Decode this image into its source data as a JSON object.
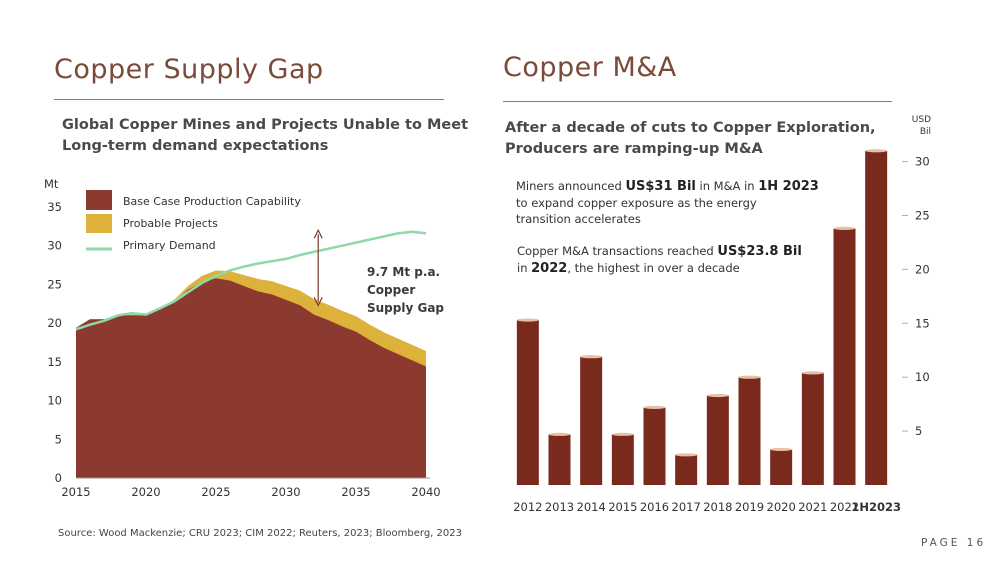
{
  "left": {
    "title": "Copper Supply Gap",
    "subtitle_line1": "Global Copper Mines and Projects Unable to Meet",
    "subtitle_line2": "Long-term demand expectations",
    "gap_label": [
      "9.7 Mt p.a.",
      "Copper",
      "Supply Gap"
    ],
    "source": "Source:  Wood Mackenzie; CRU 2023; CIM 2022; Reuters, 2023; Bloomberg, 2023"
  },
  "right": {
    "title": "Copper M&A",
    "subtitle_line1": "After a decade of cuts to Copper Exploration,",
    "subtitle_line2": "Producers are ramping-up M&A",
    "note1": {
      "pre": "Miners announced ",
      "b1": "US$31 Bil",
      "mid": " in M&A in ",
      "b2": "1H 2023",
      "line2": "to expand copper exposure as the energy",
      "line3": "transition accelerates"
    },
    "note2": {
      "pre": "Copper M&A transactions reached ",
      "b1": "US$23.8 Bil",
      "line2_pre": "in ",
      "b2": "2022",
      "line2_post": ", the highest in over a decade"
    }
  },
  "page_number": "PAGE 16",
  "colors": {
    "base": "#8c3a2f",
    "probable": "#dcb23a",
    "demand": "#8fd8a8",
    "bar": "#7a2a1c",
    "bar_top": "#e8c0a8",
    "title": "#7a4a3a"
  },
  "chart_data": [
    {
      "type": "area",
      "title": "",
      "ylabel": "Mt",
      "xlim": [
        2015,
        2040
      ],
      "ylim": [
        0,
        35
      ],
      "yticks": [
        0,
        5,
        10,
        15,
        20,
        25,
        30,
        35
      ],
      "xticks": [
        2015,
        2020,
        2025,
        2030,
        2035,
        2040
      ],
      "legend_placement": "top-left",
      "x": [
        2015,
        2016,
        2017,
        2018,
        2019,
        2020,
        2021,
        2022,
        2023,
        2024,
        2025,
        2026,
        2027,
        2028,
        2029,
        2030,
        2031,
        2032,
        2033,
        2034,
        2035,
        2036,
        2037,
        2038,
        2039,
        2040
      ],
      "series": [
        {
          "name": "Base Case Production Capability",
          "values": [
            19.4,
            20.5,
            20.5,
            21.0,
            21.0,
            21.0,
            21.8,
            22.8,
            24.3,
            25.3,
            25.8,
            25.5,
            24.8,
            24.1,
            23.7,
            23.0,
            22.3,
            21.1,
            20.4,
            19.6,
            18.9,
            17.8,
            16.8,
            16.0,
            15.2,
            14.4
          ]
        },
        {
          "name": "Probable Projects",
          "values": [
            0,
            0,
            0,
            0,
            0.1,
            0.1,
            0.1,
            0.2,
            0.5,
            0.8,
            1.0,
            1.2,
            1.4,
            1.6,
            1.7,
            1.8,
            1.9,
            2.0,
            2.0,
            2.0,
            2.0,
            2.0,
            2.0,
            2.0,
            2.0,
            2.0
          ]
        },
        {
          "name": "Primary Demand",
          "values": [
            19.2,
            19.8,
            20.3,
            21.0,
            21.3,
            21.1,
            21.9,
            22.8,
            24.0,
            25.2,
            26.1,
            26.8,
            27.3,
            27.7,
            28.0,
            28.3,
            28.8,
            29.2,
            29.6,
            30.0,
            30.4,
            30.8,
            31.2,
            31.6,
            31.8,
            31.6
          ]
        }
      ]
    },
    {
      "type": "bar",
      "title": "",
      "ylabel": "USD Bil",
      "ylim": [
        0,
        32
      ],
      "yticks": [
        5,
        10,
        15,
        20,
        25,
        30
      ],
      "grid": false,
      "categories": [
        "2012",
        "2013",
        "2014",
        "2015",
        "2016",
        "2017",
        "2018",
        "2019",
        "2020",
        "2021",
        "2022",
        "1H2023"
      ],
      "values": [
        15.3,
        4.7,
        11.9,
        4.7,
        7.2,
        2.8,
        8.3,
        10.0,
        3.3,
        10.4,
        23.8,
        31.0
      ]
    }
  ]
}
